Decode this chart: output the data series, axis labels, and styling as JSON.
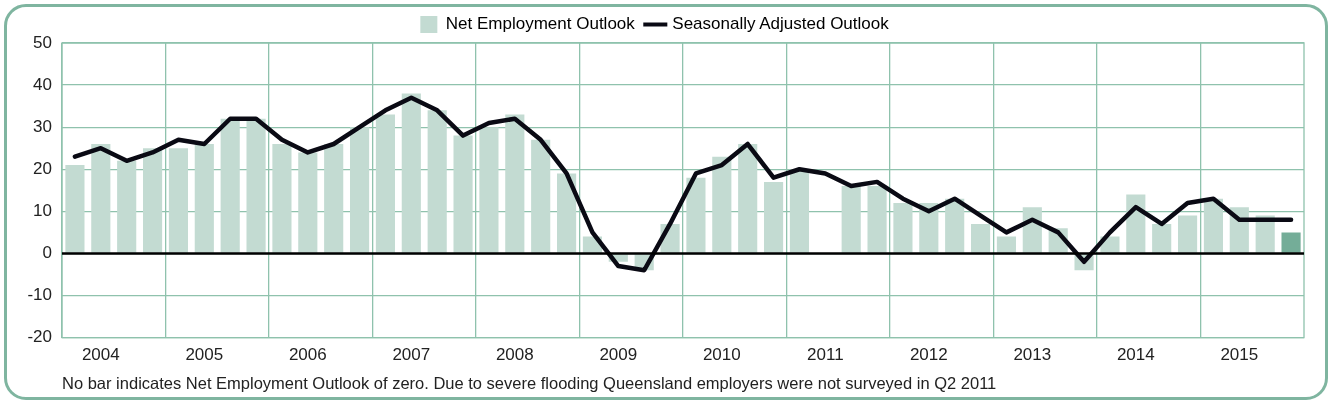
{
  "chart_data": {
    "type": "bar",
    "categories": [
      null,
      "2004",
      null,
      null,
      null,
      "2005",
      null,
      null,
      null,
      "2006",
      null,
      null,
      null,
      "2007",
      null,
      null,
      null,
      "2008",
      null,
      null,
      null,
      "2009",
      null,
      null,
      null,
      "2010",
      null,
      null,
      null,
      "2011",
      null,
      null,
      null,
      "2012",
      null,
      null,
      null,
      "2013",
      null,
      null,
      null,
      "2014",
      null,
      null,
      null,
      "2015",
      null,
      null
    ],
    "series": [
      {
        "name": "Net Employment Outlook",
        "color": "#c3dbd2",
        "colors": [
          "#c3dbd2",
          "#c3dbd2",
          "#c3dbd2",
          "#c3dbd2",
          "#c3dbd2",
          "#c3dbd2",
          "#c3dbd2",
          "#c3dbd2",
          "#c3dbd2",
          "#c3dbd2",
          "#c3dbd2",
          "#c3dbd2",
          "#c3dbd2",
          "#c3dbd2",
          "#c3dbd2",
          "#c3dbd2",
          "#c3dbd2",
          "#c3dbd2",
          "#c3dbd2",
          "#c3dbd2",
          "#c3dbd2",
          "#c3dbd2",
          "#c3dbd2",
          "#c3dbd2",
          "#c3dbd2",
          "#c3dbd2",
          "#c3dbd2",
          "#c3dbd2",
          "#c3dbd2",
          "#c3dbd2",
          "#c3dbd2",
          "#c3dbd2",
          "#c3dbd2",
          "#c3dbd2",
          "#c3dbd2",
          "#c3dbd2",
          "#c3dbd2",
          "#c3dbd2",
          "#c3dbd2",
          "#c3dbd2",
          "#c3dbd2",
          "#c3dbd2",
          "#c3dbd2",
          "#c3dbd2",
          "#c3dbd2",
          "#c3dbd2",
          "#c3dbd2",
          "#74ad98"
        ],
        "values": [
          21,
          26,
          22,
          25,
          25,
          26,
          32,
          32,
          26,
          24,
          26,
          30,
          33,
          38,
          34,
          28,
          30,
          33,
          27,
          19,
          4,
          -2,
          -4,
          7,
          18,
          23,
          26,
          17,
          20,
          null,
          16,
          16,
          12,
          12,
          13,
          7,
          4,
          11,
          6,
          -4,
          4,
          14,
          7,
          9,
          13,
          11,
          9,
          5
        ]
      },
      {
        "name": "Seasonally Adjusted Outlook",
        "type": "line",
        "color": "#0a0a14",
        "values": [
          23,
          25,
          22,
          24,
          27,
          26,
          32,
          32,
          27,
          24,
          26,
          30,
          34,
          37,
          34,
          28,
          31,
          32,
          27,
          19,
          5,
          -3,
          -4,
          7,
          19,
          21,
          26,
          18,
          20,
          19,
          16,
          17,
          13,
          10,
          13,
          9,
          5,
          8,
          5,
          -2,
          5,
          11,
          7,
          12,
          13,
          8,
          8,
          8
        ]
      }
    ],
    "ylim": [
      -20,
      50
    ],
    "yticks": [
      -20,
      -10,
      0,
      10,
      20,
      30,
      40,
      50
    ],
    "grid": true,
    "legend": "top",
    "marker": "none",
    "line_style": "solid",
    "ref_lines": [
      {
        "axis": "y",
        "value": 0,
        "color": "#000000"
      }
    ],
    "annotations": [
      "No bar indicates Net Employment Outlook of zero. Due to severe flooding Queensland employers were not surveyed in Q2 2011"
    ]
  }
}
